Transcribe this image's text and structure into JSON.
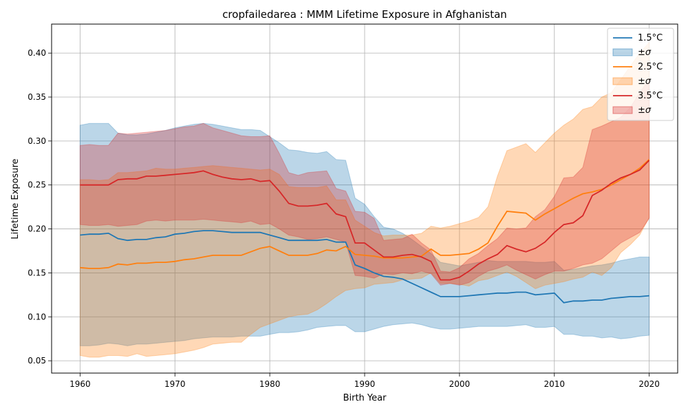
{
  "chart_data": {
    "type": "line",
    "title": "cropfailedarea : MMM Lifetime Exposure in Afghanistan",
    "xlabel": "Birth Year",
    "ylabel": "Lifetime Exposure",
    "xlim": [
      1957,
      2023
    ],
    "ylim": [
      0.036,
      0.433
    ],
    "xticks": [
      1960,
      1970,
      1980,
      1990,
      2000,
      2010,
      2020
    ],
    "yticks": [
      0.05,
      0.1,
      0.15,
      0.2,
      0.25,
      0.3,
      0.35,
      0.4
    ],
    "ytick_labels": [
      "0.05",
      "0.10",
      "0.15",
      "0.20",
      "0.25",
      "0.30",
      "0.35",
      "0.40"
    ],
    "grid": true,
    "legend_position": "top-right",
    "x_start": 1960,
    "series": [
      {
        "name": "1.5°C",
        "band_label": "±σ",
        "color": "#1f77b4",
        "mean": [
          0.193,
          0.194,
          0.194,
          0.195,
          0.189,
          0.187,
          0.188,
          0.188,
          0.19,
          0.191,
          0.194,
          0.195,
          0.197,
          0.198,
          0.198,
          0.197,
          0.196,
          0.196,
          0.196,
          0.196,
          0.193,
          0.19,
          0.187,
          0.187,
          0.187,
          0.187,
          0.188,
          0.185,
          0.185,
          0.159,
          0.155,
          0.15,
          0.146,
          0.145,
          0.143,
          0.138,
          0.133,
          0.128,
          0.123,
          0.123,
          0.123,
          0.124,
          0.125,
          0.126,
          0.127,
          0.127,
          0.128,
          0.128,
          0.125,
          0.126,
          0.127,
          0.116,
          0.118,
          0.118,
          0.119,
          0.119,
          0.121,
          0.122,
          0.123,
          0.123,
          0.124
        ],
        "upper": [
          0.318,
          0.32,
          0.32,
          0.32,
          0.309,
          0.307,
          0.307,
          0.308,
          0.31,
          0.312,
          0.315,
          0.317,
          0.319,
          0.32,
          0.319,
          0.317,
          0.315,
          0.313,
          0.313,
          0.312,
          0.305,
          0.298,
          0.29,
          0.289,
          0.287,
          0.286,
          0.288,
          0.279,
          0.278,
          0.235,
          0.228,
          0.214,
          0.202,
          0.2,
          0.195,
          0.188,
          0.18,
          0.172,
          0.162,
          0.16,
          0.158,
          0.16,
          0.162,
          0.164,
          0.163,
          0.163,
          0.163,
          0.163,
          0.162,
          0.162,
          0.163,
          0.153,
          0.154,
          0.156,
          0.158,
          0.159,
          0.161,
          0.164,
          0.166,
          0.168,
          0.168
        ],
        "lower": [
          0.067,
          0.067,
          0.068,
          0.07,
          0.069,
          0.067,
          0.069,
          0.069,
          0.07,
          0.071,
          0.072,
          0.073,
          0.075,
          0.076,
          0.077,
          0.077,
          0.077,
          0.078,
          0.078,
          0.078,
          0.08,
          0.082,
          0.082,
          0.083,
          0.085,
          0.088,
          0.089,
          0.09,
          0.09,
          0.083,
          0.083,
          0.086,
          0.089,
          0.091,
          0.092,
          0.093,
          0.091,
          0.088,
          0.086,
          0.086,
          0.087,
          0.088,
          0.089,
          0.089,
          0.089,
          0.089,
          0.09,
          0.091,
          0.088,
          0.088,
          0.089,
          0.08,
          0.08,
          0.078,
          0.078,
          0.076,
          0.077,
          0.075,
          0.076,
          0.078,
          0.079
        ]
      },
      {
        "name": "2.5°C",
        "band_label": "±σ",
        "color": "#ff7f0e",
        "mean": [
          0.156,
          0.155,
          0.155,
          0.156,
          0.16,
          0.159,
          0.161,
          0.161,
          0.162,
          0.162,
          0.163,
          0.165,
          0.166,
          0.168,
          0.17,
          0.17,
          0.17,
          0.17,
          0.174,
          0.178,
          0.18,
          0.175,
          0.17,
          0.17,
          0.17,
          0.172,
          0.176,
          0.175,
          0.18,
          0.171,
          0.17,
          0.169,
          0.167,
          0.167,
          0.167,
          0.168,
          0.169,
          0.177,
          0.17,
          0.17,
          0.171,
          0.172,
          0.177,
          0.184,
          0.203,
          0.22,
          0.219,
          0.218,
          0.21,
          0.217,
          0.223,
          0.229,
          0.235,
          0.24,
          0.242,
          0.245,
          0.25,
          0.256,
          0.262,
          0.269,
          0.279
        ],
        "upper": [
          0.256,
          0.256,
          0.255,
          0.256,
          0.264,
          0.264,
          0.265,
          0.266,
          0.269,
          0.268,
          0.268,
          0.269,
          0.27,
          0.271,
          0.272,
          0.271,
          0.27,
          0.269,
          0.268,
          0.267,
          0.268,
          0.262,
          0.248,
          0.247,
          0.247,
          0.247,
          0.249,
          0.233,
          0.233,
          0.21,
          0.203,
          0.196,
          0.192,
          0.193,
          0.193,
          0.193,
          0.195,
          0.203,
          0.201,
          0.203,
          0.206,
          0.209,
          0.213,
          0.225,
          0.26,
          0.289,
          0.293,
          0.297,
          0.287,
          0.298,
          0.309,
          0.318,
          0.325,
          0.336,
          0.339,
          0.35,
          0.355,
          0.37,
          0.385,
          0.4,
          0.412
        ],
        "lower": [
          0.056,
          0.054,
          0.054,
          0.056,
          0.056,
          0.055,
          0.058,
          0.055,
          0.056,
          0.057,
          0.058,
          0.06,
          0.062,
          0.065,
          0.069,
          0.07,
          0.071,
          0.071,
          0.08,
          0.088,
          0.092,
          0.096,
          0.1,
          0.102,
          0.103,
          0.108,
          0.115,
          0.123,
          0.13,
          0.132,
          0.133,
          0.137,
          0.138,
          0.139,
          0.142,
          0.143,
          0.144,
          0.15,
          0.138,
          0.138,
          0.137,
          0.135,
          0.141,
          0.143,
          0.147,
          0.151,
          0.146,
          0.139,
          0.132,
          0.136,
          0.138,
          0.14,
          0.143,
          0.145,
          0.151,
          0.147,
          0.156,
          0.173,
          0.182,
          0.193,
          0.213
        ]
      },
      {
        "name": "3.5°C",
        "band_label": "±σ",
        "color": "#d62728",
        "mean": [
          0.25,
          0.25,
          0.25,
          0.25,
          0.256,
          0.257,
          0.257,
          0.26,
          0.26,
          0.261,
          0.262,
          0.263,
          0.264,
          0.266,
          0.262,
          0.259,
          0.257,
          0.256,
          0.257,
          0.254,
          0.255,
          0.243,
          0.229,
          0.226,
          0.226,
          0.227,
          0.229,
          0.217,
          0.214,
          0.184,
          0.184,
          0.176,
          0.168,
          0.168,
          0.17,
          0.171,
          0.168,
          0.163,
          0.142,
          0.142,
          0.145,
          0.152,
          0.16,
          0.166,
          0.171,
          0.181,
          0.177,
          0.174,
          0.178,
          0.185,
          0.196,
          0.205,
          0.207,
          0.215,
          0.238,
          0.244,
          0.252,
          0.258,
          0.262,
          0.267,
          0.278
        ],
        "upper": [
          0.295,
          0.296,
          0.295,
          0.295,
          0.309,
          0.308,
          0.309,
          0.31,
          0.311,
          0.312,
          0.314,
          0.316,
          0.317,
          0.32,
          0.315,
          0.312,
          0.309,
          0.306,
          0.305,
          0.305,
          0.306,
          0.286,
          0.264,
          0.261,
          0.264,
          0.265,
          0.266,
          0.246,
          0.243,
          0.22,
          0.219,
          0.212,
          0.187,
          0.188,
          0.189,
          0.194,
          0.184,
          0.176,
          0.152,
          0.151,
          0.156,
          0.166,
          0.172,
          0.181,
          0.189,
          0.201,
          0.2,
          0.201,
          0.214,
          0.222,
          0.237,
          0.258,
          0.259,
          0.27,
          0.313,
          0.317,
          0.322,
          0.327,
          0.338,
          0.355,
          0.37
        ],
        "lower": [
          0.205,
          0.204,
          0.204,
          0.205,
          0.203,
          0.204,
          0.205,
          0.209,
          0.21,
          0.209,
          0.21,
          0.21,
          0.21,
          0.211,
          0.21,
          0.209,
          0.208,
          0.207,
          0.209,
          0.205,
          0.206,
          0.2,
          0.193,
          0.191,
          0.188,
          0.189,
          0.191,
          0.188,
          0.185,
          0.147,
          0.146,
          0.144,
          0.149,
          0.148,
          0.15,
          0.149,
          0.152,
          0.149,
          0.136,
          0.138,
          0.136,
          0.139,
          0.146,
          0.152,
          0.155,
          0.159,
          0.153,
          0.148,
          0.143,
          0.148,
          0.152,
          0.152,
          0.155,
          0.159,
          0.161,
          0.166,
          0.175,
          0.184,
          0.19,
          0.196,
          0.212
        ]
      }
    ]
  }
}
